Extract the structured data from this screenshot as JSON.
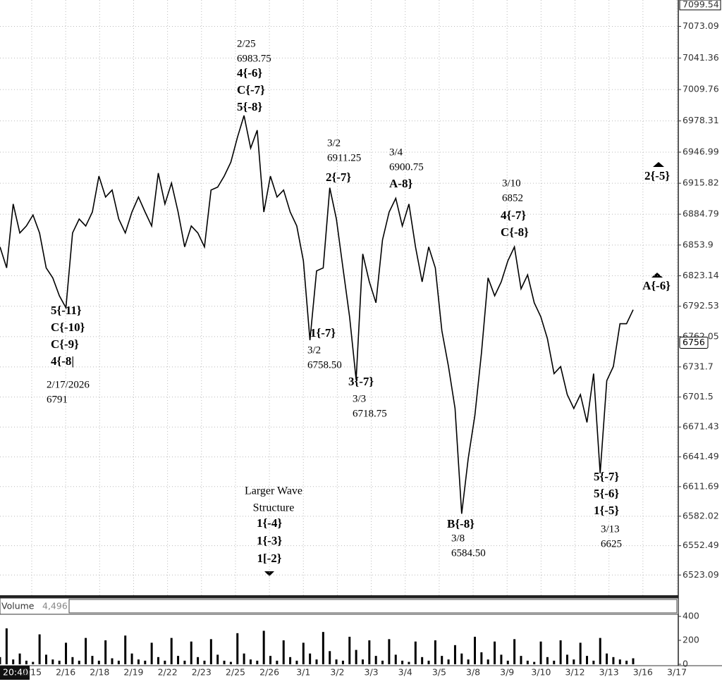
{
  "chart_data": {
    "type": "line",
    "price_ylim": [
      6502.8,
      7099.54
    ],
    "yticks": [
      7073.09,
      7041.36,
      7009.76,
      6978.31,
      6946.99,
      6915.82,
      6884.79,
      6853.9,
      6823.14,
      6792.53,
      6762.05,
      6731.7,
      6701.5,
      6671.43,
      6641.49,
      6611.69,
      6582.02,
      6552.49,
      6523.09
    ],
    "top_price_label": "7099.54",
    "last_price_label": "6756",
    "color": "#000000",
    "grid": true,
    "values": [
      6852,
      6831,
      6895,
      6866,
      6873,
      6884,
      6866,
      6831,
      6821,
      6803,
      6791,
      6866,
      6880,
      6873,
      6887,
      6923,
      6902,
      6909,
      6880,
      6866,
      6887,
      6902,
      6887,
      6873,
      6926,
      6895,
      6916,
      6887,
      6852,
      6873,
      6866,
      6852,
      6909,
      6912,
      6923,
      6937,
      6962,
      6983.75,
      6951,
      6969,
      6887,
      6923,
      6902,
      6909,
      6887,
      6873,
      6838,
      6758.5,
      6828,
      6831,
      6911.25,
      6880,
      6831,
      6782,
      6718.75,
      6845,
      6817,
      6796,
      6859,
      6887,
      6900.75,
      6873,
      6895,
      6852,
      6817,
      6852,
      6831,
      6768,
      6732,
      6690,
      6584.5,
      6640,
      6683,
      6746,
      6821,
      6803,
      6817,
      6838,
      6852,
      6810,
      6824,
      6796,
      6782,
      6760,
      6725,
      6732,
      6704,
      6690,
      6704,
      6676,
      6725,
      6625,
      6718,
      6732,
      6775,
      6775,
      6789
    ],
    "x_tick_labels": [
      "2/15",
      "2/16",
      "2/18",
      "2/19",
      "2/22",
      "2/23",
      "2/25",
      "2/26",
      "3/1",
      "3/2",
      "3/3",
      "3/4",
      "3/5",
      "3/8",
      "3/9",
      "3/10",
      "3/12",
      "3/13",
      "3/16",
      "3/17"
    ],
    "cursor_time": "20:40",
    "volume": {
      "title": "Volume",
      "last": "4,496",
      "ylim": [
        0,
        418
      ],
      "yticks": [
        0,
        200,
        400
      ],
      "values": [
        60,
        300,
        40,
        90,
        30,
        20,
        250,
        80,
        40,
        30,
        180,
        60,
        30,
        220,
        70,
        30,
        200,
        50,
        30,
        240,
        90,
        40,
        30,
        180,
        60,
        30,
        220,
        70,
        30,
        190,
        60,
        30,
        210,
        80,
        30,
        20,
        260,
        90,
        40,
        30,
        280,
        70,
        30,
        200,
        60,
        30,
        180,
        90,
        40,
        270,
        110,
        40,
        30,
        230,
        120,
        40,
        200,
        70,
        30,
        210,
        80,
        30,
        20,
        190,
        60,
        30,
        200,
        70,
        40,
        160,
        90,
        40,
        230,
        100,
        40,
        190,
        80,
        30,
        210,
        70,
        30,
        20,
        190,
        60,
        30,
        200,
        80,
        40,
        180,
        70,
        30,
        220,
        90,
        60,
        40,
        30,
        50
      ]
    },
    "annotations": [
      {
        "waves": [
          "5{-11}",
          "C{-10}",
          "C{-9}",
          "4{-8|"
        ],
        "date": "2/17/2026",
        "price": "6791"
      },
      {
        "date": "2/25",
        "price": "6983.75",
        "waves": [
          "4{-6}",
          "C{-7}",
          "5{-8}"
        ]
      },
      {
        "date": "3/2",
        "price": "6911.25",
        "waves": [
          "2{-7}"
        ]
      },
      {
        "date": "3/4",
        "price": "6900.75",
        "waves": [
          "A-8}"
        ]
      },
      {
        "date": "3/10",
        "price": "6852",
        "waves": [
          "4{-7}",
          "C{-8}"
        ]
      },
      {
        "waves": [
          "1{-7}"
        ],
        "date": "3/2",
        "price": "6758.50"
      },
      {
        "waves": [
          "3{-7}"
        ],
        "date": "3/3",
        "price": "6718.75"
      },
      {
        "waves": [
          "B{-8}"
        ],
        "date": "3/8",
        "price": "6584.50"
      },
      {
        "waves": [
          "5{-7}",
          "5{-6}",
          "1{-5}"
        ],
        "date": "3/13",
        "price": "6625"
      }
    ],
    "larger_structure": {
      "title": [
        "Larger Wave",
        "Structure"
      ],
      "waves": [
        "1{-4}",
        "1{-3}",
        "1[-2}"
      ]
    },
    "projections": [
      "2{-5}",
      "A{-6}"
    ]
  }
}
